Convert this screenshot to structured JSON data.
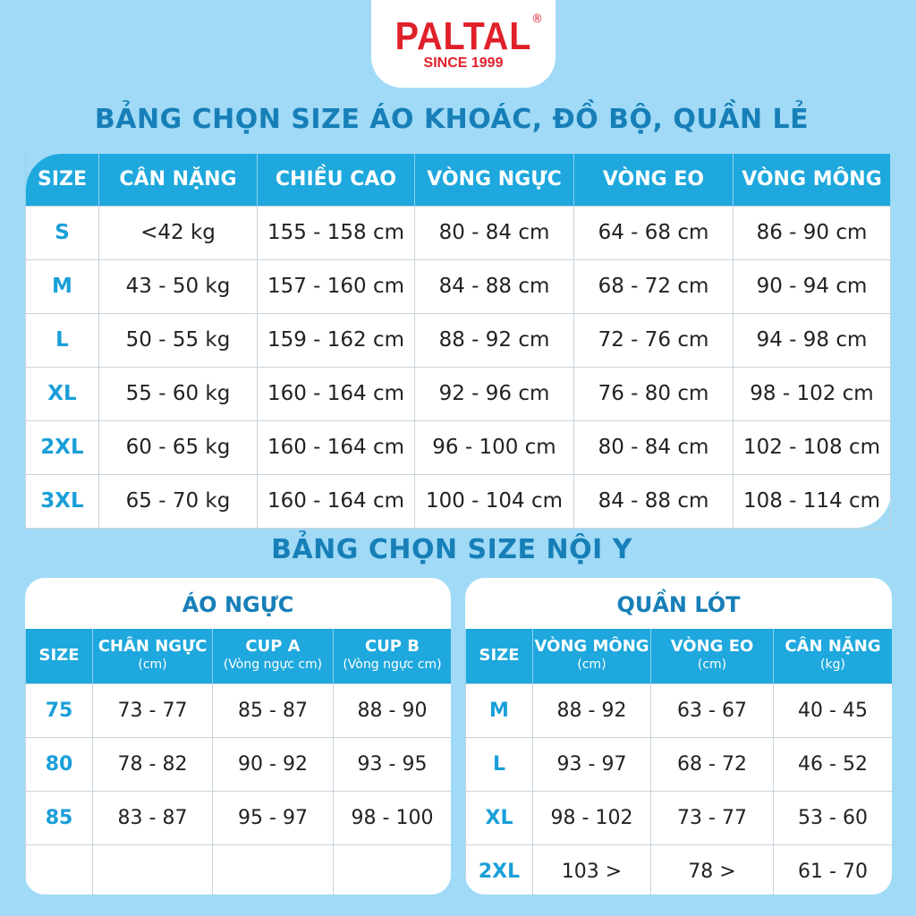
{
  "logo": {
    "brand": "PALTAL",
    "registered": "®",
    "since": "SINCE 1999"
  },
  "colors": {
    "background": "#a0daf6",
    "header": "#1ea8dd",
    "title": "#177fb8",
    "brand": "#e0202a"
  },
  "outerwear": {
    "title": "BẢNG CHỌN SIZE ÁO KHOÁC, ĐỒ BỘ, QUẦN LẺ",
    "headers": [
      "SIZE",
      "CÂN NẶNG",
      "CHIỀU CAO",
      "VÒNG NGỰC",
      "VÒNG EO",
      "VÒNG MÔNG"
    ],
    "rows": [
      [
        "S",
        "<42 kg",
        "155 - 158 cm",
        "80 - 84 cm",
        "64 - 68 cm",
        "86 - 90 cm"
      ],
      [
        "M",
        "43 - 50 kg",
        "157 - 160 cm",
        "84 - 88 cm",
        "68 - 72 cm",
        "90 - 94 cm"
      ],
      [
        "L",
        "50 - 55 kg",
        "159 - 162 cm",
        "88 - 92 cm",
        "72 - 76 cm",
        "94 - 98 cm"
      ],
      [
        "XL",
        "55 - 60 kg",
        "160 - 164 cm",
        "92 - 96 cm",
        "76 - 80 cm",
        "98 - 102 cm"
      ],
      [
        "2XL",
        "60 - 65 kg",
        "160 - 164 cm",
        "96 - 100 cm",
        "80 - 84 cm",
        "102 - 108 cm"
      ],
      [
        "3XL",
        "65 - 70 kg",
        "160 - 164 cm",
        "100 - 104 cm",
        "84 - 88 cm",
        "108 - 114 cm"
      ]
    ]
  },
  "underwear_title": "BẢNG CHỌN SIZE NỘI Y",
  "bra": {
    "title": "ÁO NGỰC",
    "headers": [
      {
        "label": "SIZE",
        "sub": ""
      },
      {
        "label": "CHÂN NGỰC",
        "sub": "(cm)"
      },
      {
        "label": "CUP A",
        "sub": "(Vòng ngực cm)"
      },
      {
        "label": "CUP B",
        "sub": "(Vòng ngực cm)"
      }
    ],
    "rows": [
      [
        "75",
        "73 - 77",
        "85 - 87",
        "88 - 90"
      ],
      [
        "80",
        "78 - 82",
        "90 - 92",
        "93 - 95"
      ],
      [
        "85",
        "83 - 87",
        "95 - 97",
        "98 - 100"
      ],
      [
        "",
        "",
        "",
        ""
      ]
    ]
  },
  "panties": {
    "title": "QUẦN LÓT",
    "headers": [
      {
        "label": "SIZE",
        "sub": ""
      },
      {
        "label": "VÒNG MÔNG",
        "sub": "(cm)"
      },
      {
        "label": "VÒNG  EO",
        "sub": "(cm)"
      },
      {
        "label": "CÂN NẶNG",
        "sub": "(kg)"
      }
    ],
    "rows": [
      [
        "M",
        "88 - 92",
        "63 - 67",
        "40 - 45"
      ],
      [
        "L",
        "93 - 97",
        "68 - 72",
        "46 - 52"
      ],
      [
        "XL",
        "98 - 102",
        "73 - 77",
        "53 - 60"
      ],
      [
        "2XL",
        "103 >",
        "78 >",
        "61 - 70"
      ]
    ]
  }
}
